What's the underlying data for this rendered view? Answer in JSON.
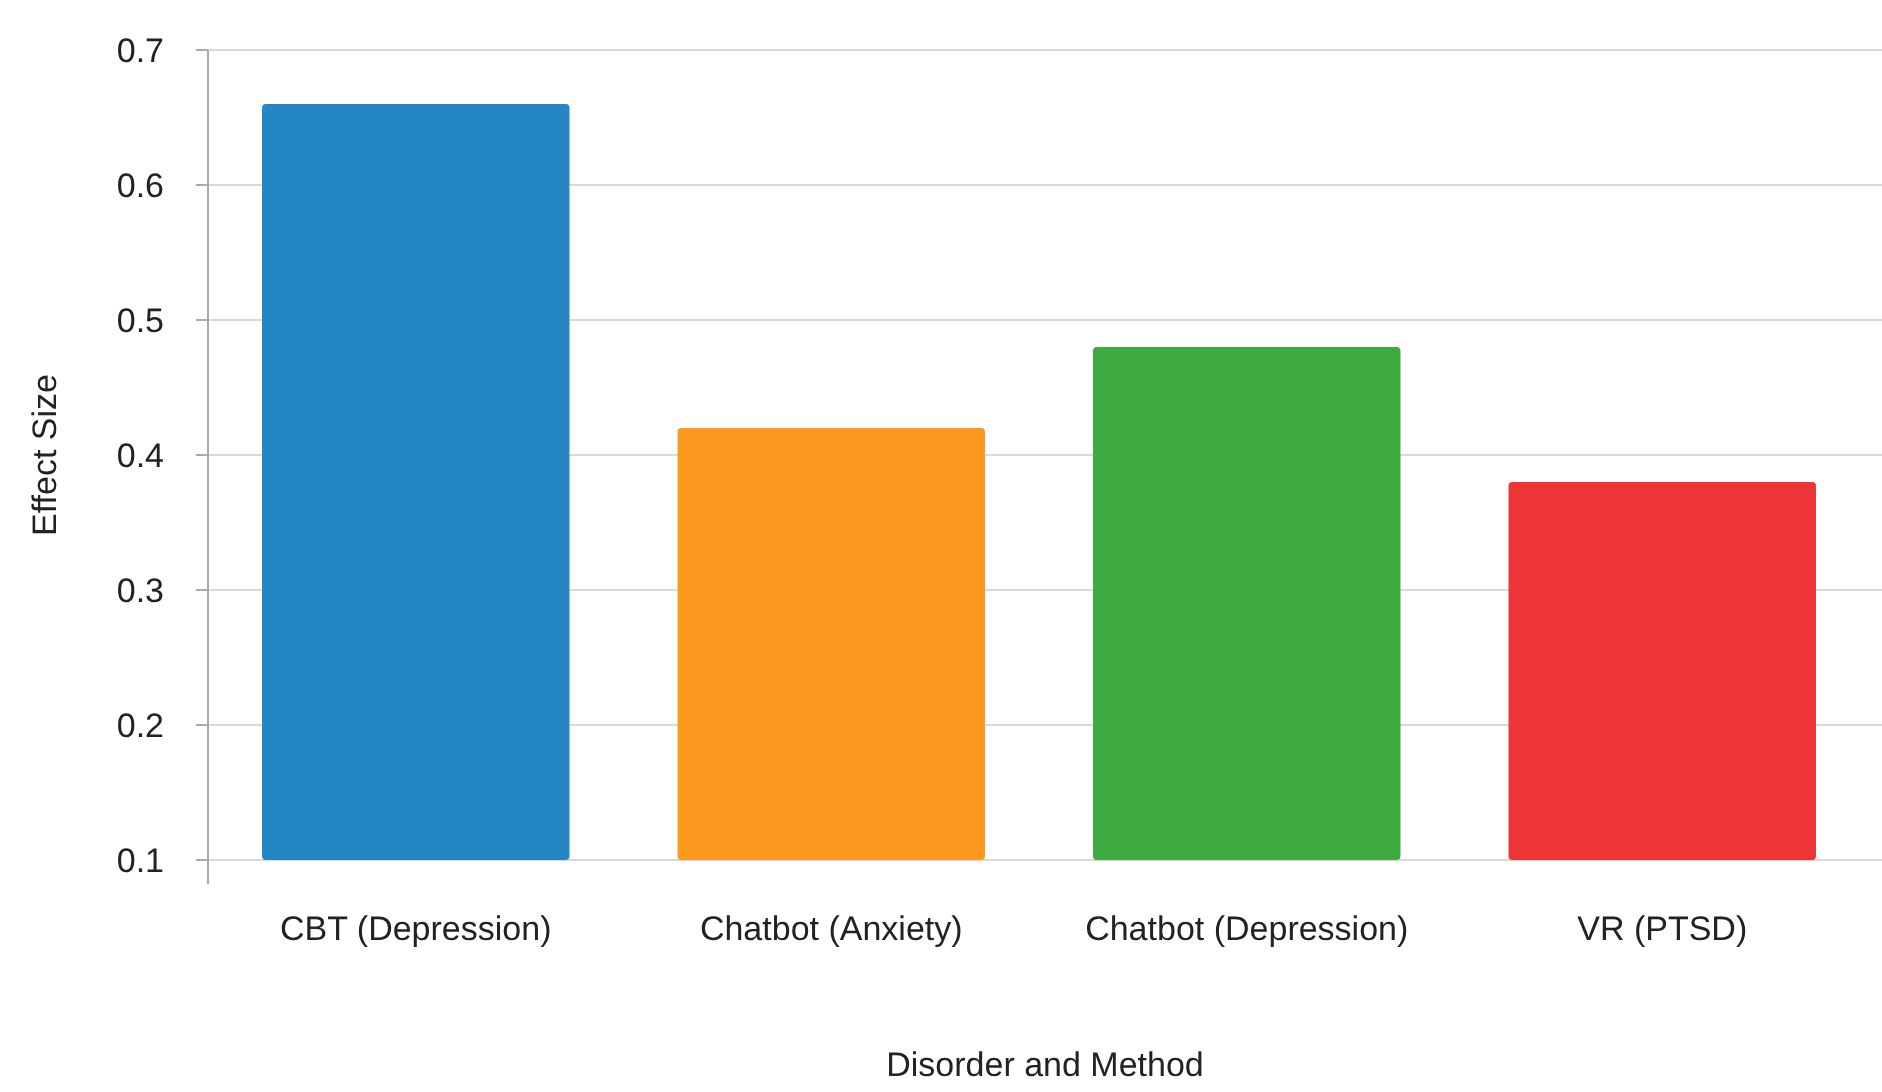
{
  "chart_data": {
    "type": "bar",
    "xlabel": "Disorder and Method",
    "ylabel": "Effect Size",
    "categories": [
      "CBT (Depression)",
      "Chatbot (Anxiety)",
      "Chatbot (Depression)",
      "VR (PTSD)"
    ],
    "values": [
      0.66,
      0.42,
      0.48,
      0.38
    ],
    "colors": [
      "#2486c4",
      "#fb9a1e",
      "#3eab3e",
      "#ee3535"
    ],
    "ylim": [
      0.1,
      0.7
    ],
    "yticks": [
      0.1,
      0.2,
      0.3,
      0.4,
      0.5,
      0.6,
      0.7
    ],
    "grid": "y"
  }
}
